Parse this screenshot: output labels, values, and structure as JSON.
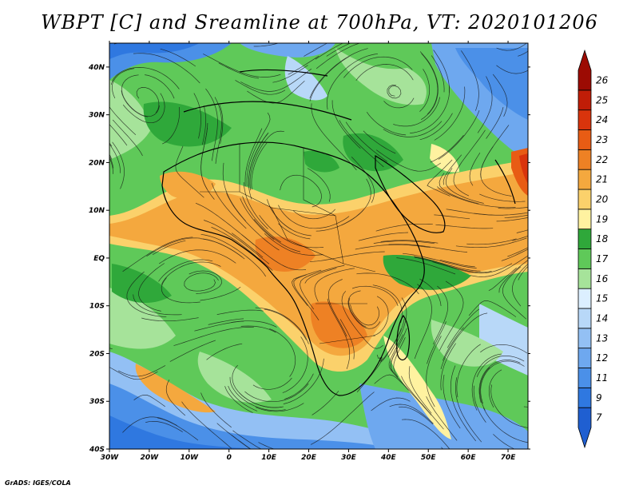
{
  "title": "WBPT [C] and Sreamline at 700hPa, VT: 2020101206",
  "footer": "GrADS: IGES/COLA",
  "map": {
    "lon_range": [
      -30,
      75
    ],
    "lat_range": [
      -40,
      45
    ],
    "lon_ticks": [
      "30W",
      "20W",
      "10W",
      "0",
      "10E",
      "20E",
      "30E",
      "40E",
      "50E",
      "60E",
      "70E"
    ],
    "lat_ticks": [
      "40N",
      "30N",
      "20N",
      "10N",
      "EQ",
      "10S",
      "20S",
      "30S",
      "40S"
    ]
  },
  "colorbar": {
    "labels": [
      "7",
      "9",
      "11",
      "12",
      "13",
      "14",
      "15",
      "16",
      "17",
      "18",
      "19",
      "20",
      "21",
      "22",
      "23",
      "24",
      "25",
      "26"
    ],
    "colors": [
      "#1f5fd1",
      "#2f78e0",
      "#4b90e8",
      "#6ea8ef",
      "#93c0f4",
      "#b8d8f8",
      "#dcefff",
      "#a6e39a",
      "#5fc959",
      "#2fa83a",
      "#fff2a0",
      "#fbd16b",
      "#f4a83e",
      "#ee8124",
      "#e85c14",
      "#d9340c",
      "#c01d07",
      "#9c0b03"
    ]
  }
}
